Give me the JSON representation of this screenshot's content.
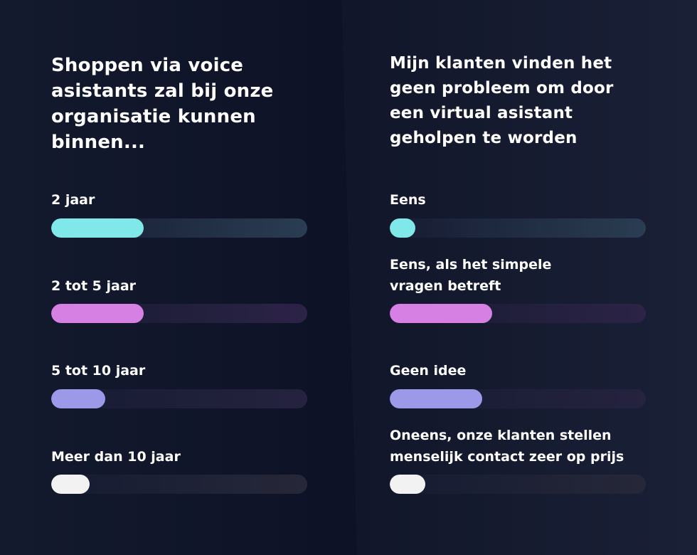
{
  "chart_data": [
    {
      "type": "bar",
      "title": "Shoppen via voice asistants zal bij onze organisatie kunnen binnen...",
      "categories": [
        "2 jaar",
        "2 tot 5 jaar",
        "5 tot 10 jaar",
        "Meer dan 10 jaar"
      ],
      "values": [
        36,
        36,
        21,
        15
      ],
      "xlim": [
        0,
        100
      ],
      "colors": [
        "#80e8e8",
        "#d680e3",
        "#9c9ae8",
        "#f2f2f2"
      ],
      "track_colors": [
        "#2a3d52",
        "#2c2346",
        "#25233f",
        "#262839"
      ]
    },
    {
      "type": "bar",
      "title": "Mijn klanten vinden het geen probleem om door een virtual asistant geholpen te worden",
      "categories": [
        "Eens",
        "Eens, als het simpele\nvragen betreft",
        "Geen idee",
        "Oneens, onze klanten stellen\nmenselijk contact zeer op prijs"
      ],
      "values": [
        10,
        40,
        36,
        14
      ],
      "xlim": [
        0,
        100
      ],
      "colors": [
        "#80e8e8",
        "#d680e3",
        "#9c9ae8",
        "#f2f2f2"
      ],
      "track_colors": [
        "#2a3d52",
        "#2c2346",
        "#25233f",
        "#262839"
      ]
    }
  ],
  "background_color": "#0b0e1d"
}
